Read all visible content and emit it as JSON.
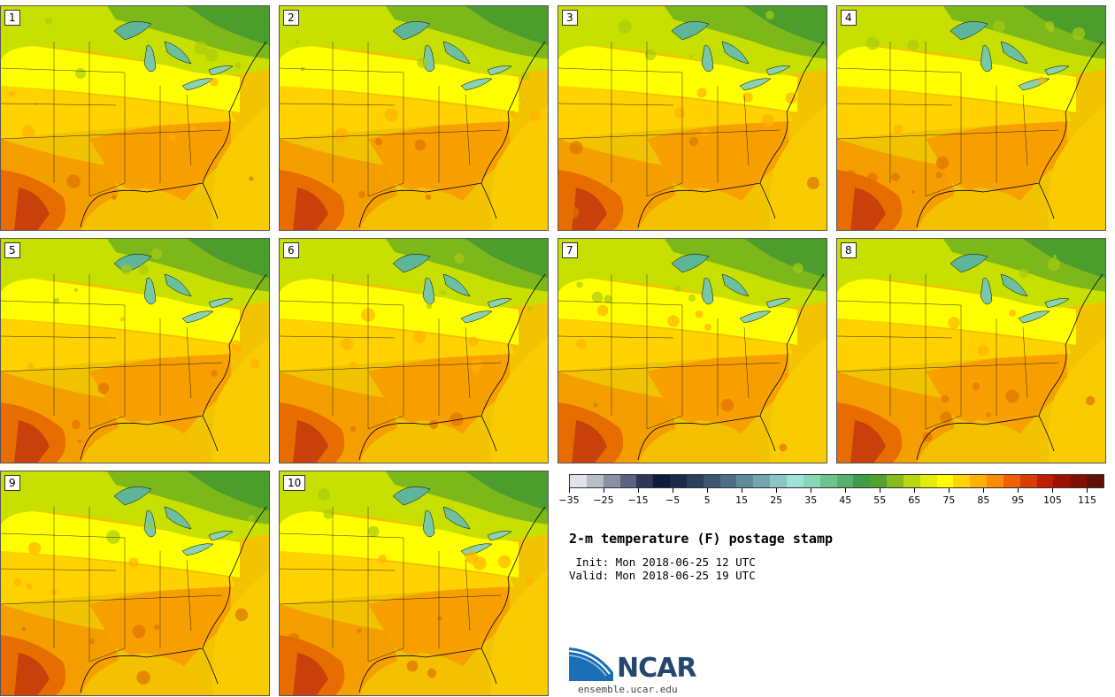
{
  "figure": {
    "title": "2-m temperature (F) postage stamp",
    "init": " Init: Mon 2018-06-25 12 UTC",
    "valid": "Valid: Mon 2018-06-25 19 UTC"
  },
  "panels": [
    {
      "label": "1"
    },
    {
      "label": "2"
    },
    {
      "label": "3"
    },
    {
      "label": "4"
    },
    {
      "label": "5"
    },
    {
      "label": "6"
    },
    {
      "label": "7"
    },
    {
      "label": "8"
    },
    {
      "label": "9"
    },
    {
      "label": "10"
    }
  ],
  "colorbar": {
    "min": -35,
    "max": 120,
    "step": 5,
    "tick_labels": [
      "-35",
      "-25",
      "-15",
      "-5",
      "5",
      "15",
      "25",
      "35",
      "45",
      "55",
      "65",
      "75",
      "85",
      "95",
      "105",
      "115"
    ],
    "colors": [
      "#dfe3e8",
      "#b8bdc8",
      "#8a90a3",
      "#5b6380",
      "#2d3656",
      "#0e1a3a",
      "#1a2a4a",
      "#2a3f5c",
      "#3c5670",
      "#4d6f86",
      "#5f8a9c",
      "#73a6b0",
      "#8cc6c4",
      "#9ee3d6",
      "#86d7b2",
      "#6cc38f",
      "#55b070",
      "#3e9c4a",
      "#4fa32e",
      "#86bc1c",
      "#b9d70e",
      "#e4ed05",
      "#ffff00",
      "#ffd400",
      "#ffb000",
      "#ff8c00",
      "#f06000",
      "#dc3c00",
      "#c01e00",
      "#a01000",
      "#801000",
      "#601008"
    ]
  },
  "logo": {
    "name": "NCAR",
    "url": "ensemble.ucar.edu"
  }
}
